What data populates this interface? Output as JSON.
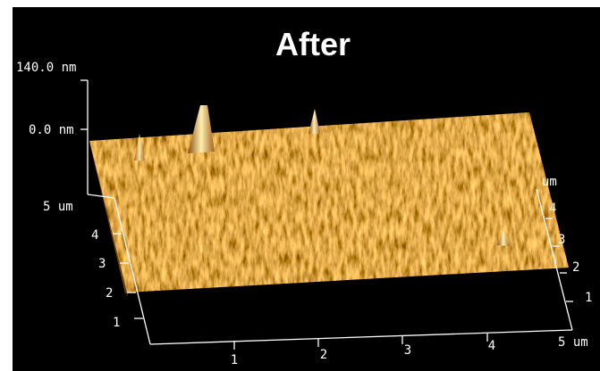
{
  "title": "After",
  "z_axis": {
    "top": "140.0 nm",
    "bottom": "0.0 nm"
  },
  "left_axis": {
    "labels": [
      "5 um",
      "4",
      "3",
      "2",
      "1"
    ]
  },
  "bottom_axis": {
    "labels": [
      "1",
      "2",
      "3",
      "4",
      "5 um"
    ]
  },
  "right_axis": {
    "labels": [
      "um",
      "4",
      "3",
      "2",
      "1"
    ]
  }
}
